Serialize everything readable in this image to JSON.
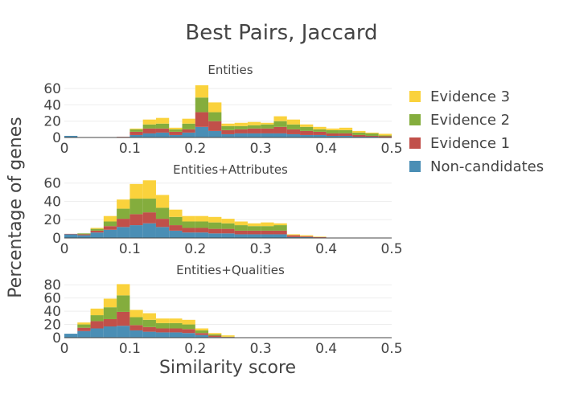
{
  "chart_data": {
    "type": "bar",
    "layout": "stacked",
    "title": "Best Pairs, Jaccard",
    "xlabel": "Similarity score",
    "ylabel": "Percentage of genes",
    "legend_position": "right",
    "series_names": [
      "Non-candidates",
      "Evidence 1",
      "Evidence 2",
      "Evidence 3"
    ],
    "series_colors": [
      "#4a8eb5",
      "#c1504a",
      "#84ad3d",
      "#fad23c"
    ],
    "legend_order": [
      "Evidence 3",
      "Evidence 2",
      "Evidence 1",
      "Non-candidates"
    ],
    "panels": [
      {
        "subtitle": "Entities",
        "ylim": [
          0,
          70
        ],
        "yticks": [
          0,
          20,
          40,
          60
        ],
        "xlim": [
          0,
          0.5
        ],
        "xticks": [
          0,
          0.1,
          0.2,
          0.3,
          0.4,
          0.5
        ],
        "xtick_labels": [
          "0",
          "0.1",
          "0.2",
          "0.3",
          "0.4",
          "0.5"
        ],
        "bins": [
          {
            "x0": 0.0,
            "x1": 0.02,
            "values": [
              2,
              0,
              0,
              0
            ]
          },
          {
            "x0": 0.02,
            "x1": 0.04,
            "values": [
              0.3,
              0,
              0,
              0
            ]
          },
          {
            "x0": 0.04,
            "x1": 0.06,
            "values": [
              0.3,
              0,
              0,
              0
            ]
          },
          {
            "x0": 0.06,
            "x1": 0.08,
            "values": [
              0.3,
              0,
              0,
              0
            ]
          },
          {
            "x0": 0.08,
            "x1": 0.1,
            "values": [
              0.5,
              0.3,
              0,
              0
            ]
          },
          {
            "x0": 0.1,
            "x1": 0.12,
            "values": [
              3,
              4,
              3,
              1
            ]
          },
          {
            "x0": 0.12,
            "x1": 0.14,
            "values": [
              5,
              6,
              5,
              6
            ]
          },
          {
            "x0": 0.14,
            "x1": 0.16,
            "values": [
              6,
              5,
              6,
              7
            ]
          },
          {
            "x0": 0.16,
            "x1": 0.18,
            "values": [
              3,
              4,
              3,
              2
            ]
          },
          {
            "x0": 0.18,
            "x1": 0.2,
            "values": [
              6,
              4,
              7,
              6
            ]
          },
          {
            "x0": 0.2,
            "x1": 0.22,
            "values": [
              13,
              18,
              18,
              15
            ]
          },
          {
            "x0": 0.22,
            "x1": 0.24,
            "values": [
              8,
              12,
              11,
              12
            ]
          },
          {
            "x0": 0.24,
            "x1": 0.26,
            "values": [
              4,
              5,
              5,
              3
            ]
          },
          {
            "x0": 0.26,
            "x1": 0.28,
            "values": [
              5,
              5,
              4,
              4
            ]
          },
          {
            "x0": 0.28,
            "x1": 0.3,
            "values": [
              5,
              6,
              4,
              4
            ]
          },
          {
            "x0": 0.3,
            "x1": 0.32,
            "values": [
              5,
              6,
              5,
              2
            ]
          },
          {
            "x0": 0.32,
            "x1": 0.34,
            "values": [
              5,
              8,
              7,
              6
            ]
          },
          {
            "x0": 0.34,
            "x1": 0.36,
            "values": [
              4,
              6,
              6,
              6
            ]
          },
          {
            "x0": 0.36,
            "x1": 0.38,
            "values": [
              3,
              5,
              5,
              3
            ]
          },
          {
            "x0": 0.38,
            "x1": 0.4,
            "values": [
              3,
              4,
              3,
              3
            ]
          },
          {
            "x0": 0.4,
            "x1": 0.42,
            "values": [
              2,
              3,
              4,
              2
            ]
          },
          {
            "x0": 0.42,
            "x1": 0.44,
            "values": [
              2,
              3,
              4,
              3
            ]
          },
          {
            "x0": 0.44,
            "x1": 0.46,
            "values": [
              1,
              2,
              3,
              2
            ]
          },
          {
            "x0": 0.46,
            "x1": 0.48,
            "values": [
              1,
              1,
              3,
              1
            ]
          },
          {
            "x0": 0.48,
            "x1": 0.5,
            "values": [
              0.5,
              1,
              1,
              2
            ]
          }
        ]
      },
      {
        "subtitle": "Entities+Attributes",
        "ylim": [
          0,
          65
        ],
        "yticks": [
          0,
          20,
          40,
          60
        ],
        "xlim": [
          0,
          0.5
        ],
        "xticks": [
          0,
          0.1,
          0.2,
          0.3,
          0.4,
          0.5
        ],
        "xtick_labels": [
          "0",
          "0.1",
          "0.2",
          "0.3",
          "0.4",
          "0.5"
        ],
        "bins": [
          {
            "x0": 0.0,
            "x1": 0.02,
            "values": [
              4,
              0.5,
              0,
              0
            ]
          },
          {
            "x0": 0.02,
            "x1": 0.04,
            "values": [
              3,
              1,
              1,
              0
            ]
          },
          {
            "x0": 0.04,
            "x1": 0.06,
            "values": [
              6,
              2,
              2,
              1
            ]
          },
          {
            "x0": 0.06,
            "x1": 0.08,
            "values": [
              9,
              4,
              5,
              6
            ]
          },
          {
            "x0": 0.08,
            "x1": 0.1,
            "values": [
              12,
              9,
              11,
              10
            ]
          },
          {
            "x0": 0.1,
            "x1": 0.12,
            "values": [
              14,
              12,
              17,
              16
            ]
          },
          {
            "x0": 0.12,
            "x1": 0.14,
            "values": [
              16,
              12,
              15,
              20
            ]
          },
          {
            "x0": 0.14,
            "x1": 0.16,
            "values": [
              12,
              9,
              12,
              14
            ]
          },
          {
            "x0": 0.16,
            "x1": 0.18,
            "values": [
              8,
              6,
              9,
              8
            ]
          },
          {
            "x0": 0.18,
            "x1": 0.2,
            "values": [
              6,
              5,
              7,
              6
            ]
          },
          {
            "x0": 0.2,
            "x1": 0.22,
            "values": [
              6,
              5,
              7,
              6
            ]
          },
          {
            "x0": 0.22,
            "x1": 0.24,
            "values": [
              5,
              5,
              7,
              6
            ]
          },
          {
            "x0": 0.24,
            "x1": 0.26,
            "values": [
              5,
              5,
              6,
              5
            ]
          },
          {
            "x0": 0.26,
            "x1": 0.28,
            "values": [
              4,
              4,
              6,
              4
            ]
          },
          {
            "x0": 0.28,
            "x1": 0.3,
            "values": [
              4,
              4,
              5,
              3
            ]
          },
          {
            "x0": 0.3,
            "x1": 0.32,
            "values": [
              4,
              4,
              5,
              4
            ]
          },
          {
            "x0": 0.32,
            "x1": 0.34,
            "values": [
              4,
              4,
              6,
              2
            ]
          },
          {
            "x0": 0.34,
            "x1": 0.36,
            "values": [
              1,
              2,
              0,
              1
            ]
          },
          {
            "x0": 0.36,
            "x1": 0.38,
            "values": [
              1,
              1,
              0,
              1
            ]
          },
          {
            "x0": 0.38,
            "x1": 0.4,
            "values": [
              0.5,
              0.5,
              0,
              0.5
            ]
          },
          {
            "x0": 0.4,
            "x1": 0.42,
            "values": [
              0.3,
              0,
              0,
              0
            ]
          },
          {
            "x0": 0.42,
            "x1": 0.44,
            "values": [
              0.2,
              0,
              0,
              0
            ]
          },
          {
            "x0": 0.44,
            "x1": 0.46,
            "values": [
              0.2,
              0,
              0,
              0
            ]
          },
          {
            "x0": 0.46,
            "x1": 0.48,
            "values": [
              0.2,
              0,
              0,
              0
            ]
          },
          {
            "x0": 0.48,
            "x1": 0.5,
            "values": [
              0.2,
              0,
              0,
              0
            ]
          }
        ]
      },
      {
        "subtitle": "Entities+Qualities",
        "ylim": [
          0,
          90
        ],
        "yticks": [
          0,
          20,
          40,
          60,
          80
        ],
        "xlim": [
          0,
          0.5
        ],
        "xticks": [
          0,
          0.1,
          0.2,
          0.3,
          0.4,
          0.5
        ],
        "xtick_labels": [
          "0",
          "0.1",
          "0.2",
          "0.3",
          "0.4",
          "0.5"
        ],
        "bins": [
          {
            "x0": 0.0,
            "x1": 0.02,
            "values": [
              6,
              0,
              0,
              0
            ]
          },
          {
            "x0": 0.02,
            "x1": 0.04,
            "values": [
              10,
              5,
              5,
              3
            ]
          },
          {
            "x0": 0.04,
            "x1": 0.06,
            "values": [
              14,
              11,
              9,
              10
            ]
          },
          {
            "x0": 0.06,
            "x1": 0.08,
            "values": [
              17,
              11,
              18,
              13
            ]
          },
          {
            "x0": 0.08,
            "x1": 0.1,
            "values": [
              18,
              21,
              25,
              17
            ]
          },
          {
            "x0": 0.1,
            "x1": 0.12,
            "values": [
              11,
              8,
              12,
              11
            ]
          },
          {
            "x0": 0.12,
            "x1": 0.14,
            "values": [
              9,
              7,
              11,
              10
            ]
          },
          {
            "x0": 0.14,
            "x1": 0.16,
            "values": [
              8,
              6,
              8,
              7
            ]
          },
          {
            "x0": 0.16,
            "x1": 0.18,
            "values": [
              8,
              6,
              8,
              7
            ]
          },
          {
            "x0": 0.18,
            "x1": 0.2,
            "values": [
              7,
              6,
              7,
              7
            ]
          },
          {
            "x0": 0.2,
            "x1": 0.22,
            "values": [
              4,
              3,
              4,
              3
            ]
          },
          {
            "x0": 0.22,
            "x1": 0.24,
            "values": [
              1,
              2,
              2,
              2
            ]
          },
          {
            "x0": 0.24,
            "x1": 0.26,
            "values": [
              0.5,
              0.5,
              0.5,
              2
            ]
          },
          {
            "x0": 0.26,
            "x1": 0.28,
            "values": [
              0.3,
              0,
              0,
              0
            ]
          },
          {
            "x0": 0.28,
            "x1": 0.3,
            "values": [
              0.3,
              0,
              0,
              0
            ]
          },
          {
            "x0": 0.3,
            "x1": 0.32,
            "values": [
              0.3,
              0,
              0,
              0
            ]
          },
          {
            "x0": 0.32,
            "x1": 0.34,
            "values": [
              0.3,
              0,
              0,
              0
            ]
          },
          {
            "x0": 0.34,
            "x1": 0.36,
            "values": [
              0.3,
              0,
              0,
              0
            ]
          },
          {
            "x0": 0.36,
            "x1": 0.38,
            "values": [
              0.3,
              0,
              0,
              0
            ]
          },
          {
            "x0": 0.38,
            "x1": 0.4,
            "values": [
              0.3,
              0,
              0,
              0
            ]
          },
          {
            "x0": 0.4,
            "x1": 0.42,
            "values": [
              0.3,
              0,
              0,
              0
            ]
          },
          {
            "x0": 0.42,
            "x1": 0.44,
            "values": [
              0.3,
              0,
              0,
              0
            ]
          },
          {
            "x0": 0.44,
            "x1": 0.46,
            "values": [
              0.3,
              0,
              0,
              0
            ]
          },
          {
            "x0": 0.46,
            "x1": 0.48,
            "values": [
              0.3,
              0,
              0,
              0
            ]
          },
          {
            "x0": 0.48,
            "x1": 0.5,
            "values": [
              0.3,
              0,
              0,
              0
            ]
          }
        ]
      }
    ]
  }
}
